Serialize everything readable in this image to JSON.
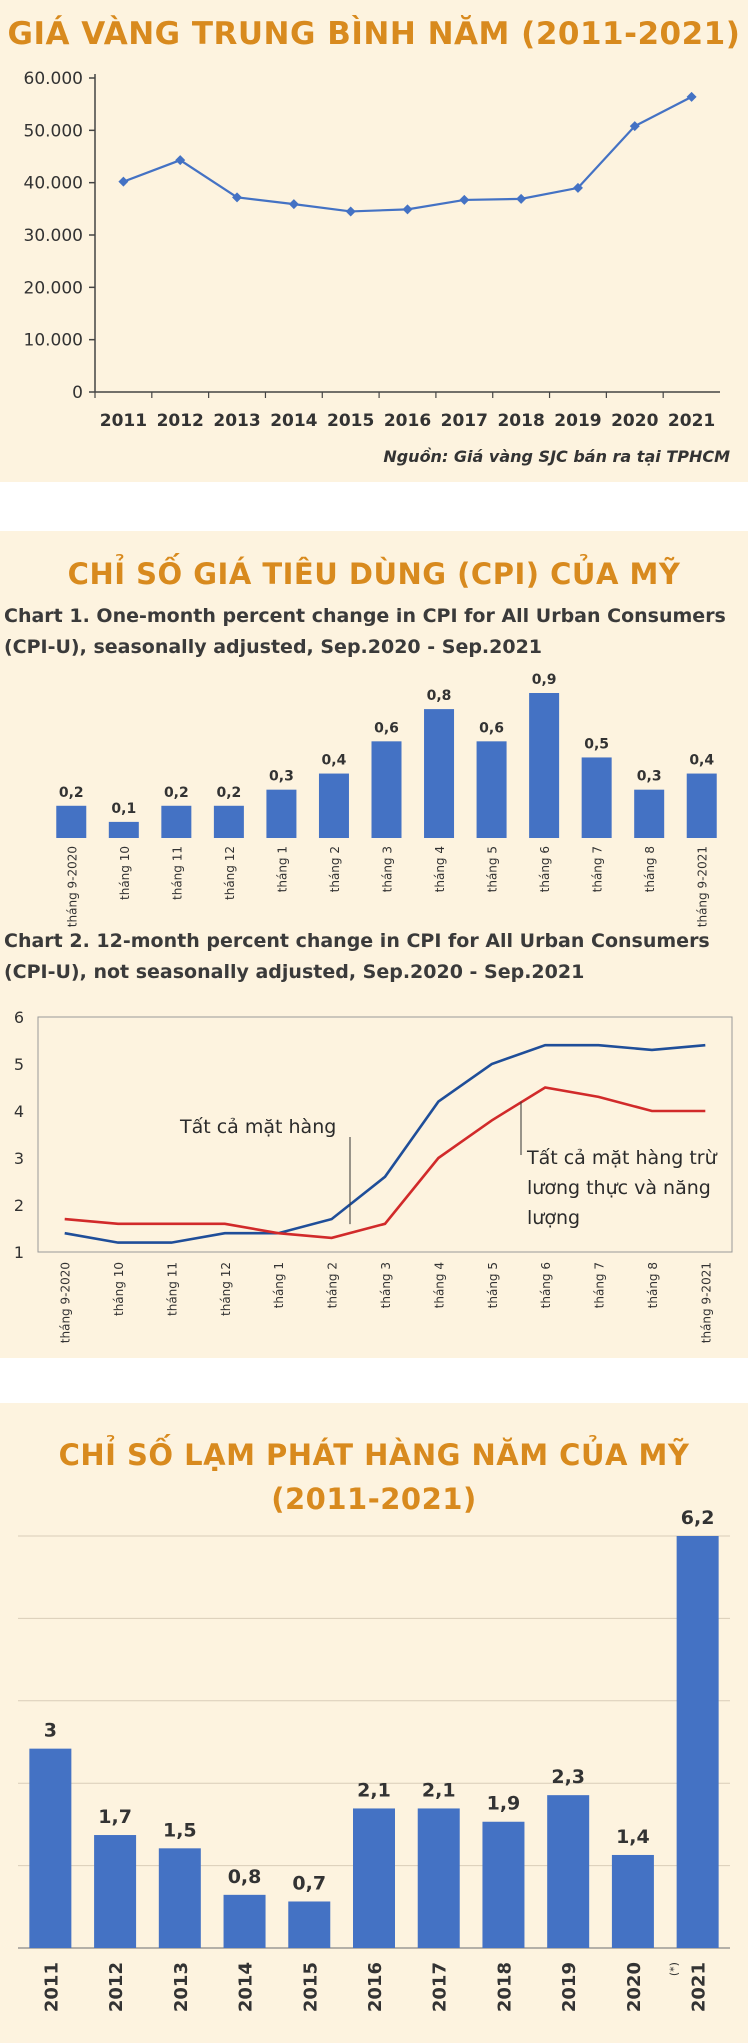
{
  "chart_data": [
    {
      "type": "line",
      "title": "GIÁ VÀNG TRUNG BÌNH NĂM (2011-2021)",
      "source": "Nguồn: Giá vàng SJC bán ra tại TPHCM",
      "x": [
        "2011",
        "2012",
        "2013",
        "2014",
        "2015",
        "2016",
        "2017",
        "2018",
        "2019",
        "2020",
        "2021"
      ],
      "values": [
        40200,
        44300,
        37200,
        35900,
        34500,
        34900,
        36700,
        36900,
        39000,
        50800,
        56400
      ],
      "yticks": [
        "0",
        "10.000",
        "20.000",
        "30.000",
        "40.000",
        "50.000",
        "60.000"
      ],
      "ylim": [
        0,
        60000
      ],
      "grid": false,
      "color": "#4472c4"
    },
    {
      "type": "bar",
      "section_title": "CHỈ SỐ GIÁ TIÊU DÙNG (CPI) CỦA MỸ",
      "title": "Chart 1. One-month percent change in CPI for All Urban Consumers (CPI-U), seasonally adjusted, Sep.2020 - Sep.2021",
      "categories": [
        "tháng 9-2020",
        "tháng 10",
        "tháng 11",
        "tháng 12",
        "tháng 1",
        "tháng 2",
        "tháng 3",
        "tháng 4",
        "tháng 5",
        "tháng 6",
        "tháng 7",
        "tháng 8",
        "tháng 9-2021"
      ],
      "values": [
        0.2,
        0.1,
        0.2,
        0.2,
        0.3,
        0.4,
        0.6,
        0.8,
        0.6,
        0.9,
        0.5,
        0.3,
        0.4
      ],
      "labels": [
        "0,2",
        "0,1",
        "0,2",
        "0,2",
        "0,3",
        "0,4",
        "0,6",
        "0,8",
        "0,6",
        "0,9",
        "0,5",
        "0,3",
        "0,4"
      ],
      "ylim": [
        0,
        0.9
      ],
      "color": "#4472c4"
    },
    {
      "type": "line",
      "title": "Chart 2. 12-month percent change in CPI for All Urban Consumers (CPI-U), not seasonally adjusted, Sep.2020 - Sep.2021",
      "categories": [
        "tháng 9-2020",
        "tháng 10",
        "tháng 11",
        "tháng 12",
        "tháng 1",
        "tháng 2",
        "tháng 3",
        "tháng 4",
        "tháng 5",
        "tháng 6",
        "tháng 7",
        "tháng 8",
        "tháng 9-2021"
      ],
      "series": [
        {
          "name": "Tất cả mặt hàng",
          "values": [
            1.4,
            1.2,
            1.2,
            1.4,
            1.4,
            1.7,
            2.6,
            4.2,
            5.0,
            5.4,
            5.4,
            5.3,
            5.4
          ],
          "color": "#1f4e99"
        },
        {
          "name": "Tất cả mặt hàng trừ lương thực và năng lượng",
          "values": [
            1.7,
            1.6,
            1.6,
            1.6,
            1.4,
            1.3,
            1.6,
            3.0,
            3.8,
            4.5,
            4.3,
            4.0,
            4.0
          ],
          "color": "#d12a2a"
        }
      ],
      "yticks": [
        "1",
        "2",
        "3",
        "4",
        "5",
        "6"
      ],
      "ylim": [
        1,
        6
      ]
    },
    {
      "type": "bar",
      "title": "CHỈ SỐ LẠM PHÁT HÀNG NĂM CỦA MỸ (2011-2021)",
      "title_lines": [
        "CHỈ SỐ LẠM PHÁT HÀNG NĂM CỦA MỸ",
        "(2011-2021)"
      ],
      "categories": [
        "2011",
        "2012",
        "2013",
        "2014",
        "2015",
        "2016",
        "2017",
        "2018",
        "2019",
        "2020",
        "2021"
      ],
      "values": [
        3,
        1.7,
        1.5,
        0.8,
        0.7,
        2.1,
        2.1,
        1.9,
        2.3,
        1.4,
        6.2
      ],
      "labels": [
        "3",
        "1,7",
        "1,5",
        "0,8",
        "0,7",
        "2,1",
        "2,1",
        "1,9",
        "2,3",
        "1,4",
        "6,2"
      ],
      "footnote": "(*)",
      "ylim": [
        0,
        6.2
      ],
      "grid": true,
      "color": "#4472c4"
    }
  ]
}
